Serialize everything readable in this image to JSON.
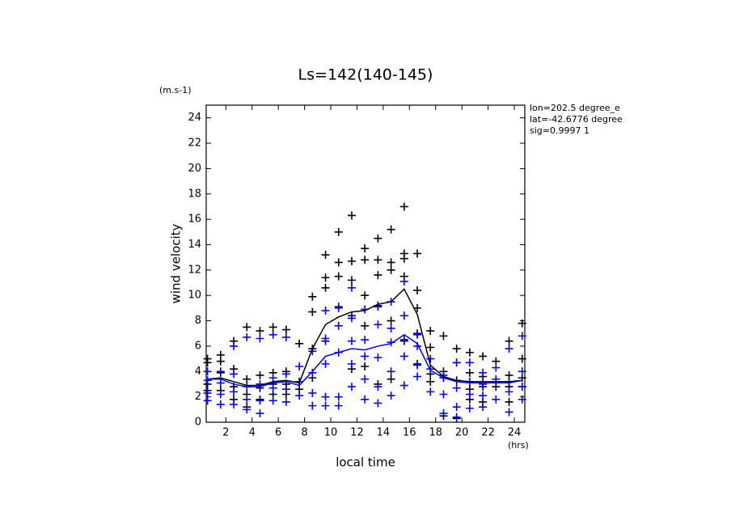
{
  "chart_data": {
    "type": "scatter",
    "title": "Ls=142(140-145)",
    "y_unit": "(m.s-1)",
    "y_label": "wind velocity",
    "x_label": "local time",
    "x_unit": "(hrs)",
    "annotations": [
      "lon=202.5 degree_e",
      "lat=-42.6776 degree",
      "sig=0.9997 1"
    ],
    "xlim": [
      0.5,
      24.8
    ],
    "ylim": [
      0,
      25
    ],
    "xticks": [
      2,
      4,
      6,
      8,
      10,
      12,
      14,
      16,
      18,
      20,
      22,
      24
    ],
    "yticks": [
      0,
      2,
      4,
      6,
      8,
      10,
      12,
      14,
      16,
      18,
      20,
      22,
      24
    ],
    "series": [
      {
        "style": "plus",
        "color": "#000000",
        "x": [
          0.6,
          0.6,
          0.6,
          0.6,
          1.6,
          1.6,
          1.6,
          1.6,
          2.6,
          2.6,
          2.6,
          2.6,
          3.6,
          3.6,
          3.6,
          3.6,
          4.6,
          4.6,
          4.6,
          4.6,
          5.6,
          5.6,
          5.6,
          5.6,
          6.6,
          6.6,
          6.6,
          6.6,
          7.6,
          7.6,
          7.6,
          8.6,
          8.6,
          8.6,
          8.6,
          9.6,
          9.6,
          9.6,
          9.6,
          10.6,
          10.6,
          10.6,
          10.6,
          11.6,
          11.6,
          11.6,
          11.6,
          11.6,
          12.6,
          12.6,
          12.6,
          12.6,
          12.6,
          13.6,
          13.6,
          13.6,
          13.6,
          13.6,
          14.6,
          14.6,
          14.6,
          14.6,
          14.6,
          15.6,
          15.6,
          15.6,
          15.6,
          15.6,
          16.6,
          16.6,
          16.6,
          16.6,
          16.6,
          17.6,
          17.6,
          17.6,
          17.6,
          18.6,
          18.6,
          18.6,
          18.6,
          19.6,
          19.6,
          19.6,
          19.6,
          20.6,
          20.6,
          20.6,
          20.6,
          21.6,
          21.6,
          21.6,
          21.6,
          22.6,
          22.6,
          22.6,
          23.6,
          23.6,
          23.6,
          23.6,
          24.6,
          24.6,
          24.6,
          24.6
        ],
        "values": [
          5,
          4.7,
          3,
          2.5,
          5.3,
          4.8,
          3.9,
          2.5,
          6.4,
          4.2,
          2.8,
          1.8,
          7.5,
          3.4,
          2.2,
          1.2,
          7.2,
          3.7,
          2.7,
          1.8,
          7.5,
          3.9,
          3,
          2.2,
          7.3,
          4,
          3,
          2.2,
          6.2,
          3.2,
          2.6,
          9.9,
          8.7,
          5.8,
          3.5,
          13.2,
          11.4,
          10.6,
          6.4,
          15,
          12.6,
          11.5,
          9.1,
          16.3,
          12.7,
          11.2,
          8.4,
          4.2,
          13.7,
          12.8,
          10,
          7.6,
          4.4,
          14.5,
          12.8,
          11.6,
          9.2,
          3,
          15.2,
          12.6,
          12,
          8,
          3.4,
          17,
          13.3,
          12.9,
          11.5,
          6.5,
          13.3,
          10.4,
          9,
          7,
          4.6,
          7.2,
          5.9,
          3.8,
          3.2,
          6.8,
          4,
          3.5,
          0.5,
          5.8,
          4.7,
          3.3,
          0.3,
          5.5,
          3.9,
          2.6,
          1.8,
          5.2,
          3.6,
          2.8,
          1.6,
          4.8,
          3.2,
          2.8,
          6.4,
          3.7,
          2.8,
          1.6,
          7.8,
          5,
          3.5,
          2.8
        ]
      },
      {
        "style": "plus",
        "color": "#0000ff",
        "x": [
          0.6,
          0.6,
          0.6,
          0.6,
          1.6,
          1.6,
          1.6,
          1.6,
          2.6,
          2.6,
          2.6,
          2.6,
          3.6,
          3.6,
          3.6,
          3.6,
          4.6,
          4.6,
          4.6,
          4.6,
          5.6,
          5.6,
          5.6,
          5.6,
          6.6,
          6.6,
          6.6,
          6.6,
          7.6,
          7.6,
          7.6,
          8.6,
          8.6,
          8.6,
          8.6,
          9.6,
          9.6,
          9.6,
          9.6,
          9.6,
          10.6,
          10.6,
          10.6,
          10.6,
          10.6,
          11.6,
          11.6,
          11.6,
          11.6,
          11.6,
          12.6,
          12.6,
          12.6,
          12.6,
          12.6,
          13.6,
          13.6,
          13.6,
          13.6,
          13.6,
          14.6,
          14.6,
          14.6,
          14.6,
          14.6,
          15.6,
          15.6,
          15.6,
          15.6,
          15.6,
          16.6,
          16.6,
          16.6,
          16.6,
          17.6,
          17.6,
          17.6,
          18.6,
          18.6,
          18.6,
          18.6,
          19.6,
          19.6,
          19.6,
          19.6,
          20.6,
          20.6,
          20.6,
          20.6,
          21.6,
          21.6,
          21.6,
          21.6,
          22.6,
          22.6,
          22.6,
          23.6,
          23.6,
          23.6,
          23.6,
          24.6,
          24.6,
          24.6,
          24.6
        ],
        "values": [
          4,
          3.3,
          2.3,
          1.7,
          4,
          3.1,
          2.2,
          1.4,
          6,
          3.8,
          2.4,
          1.4,
          6.7,
          2.8,
          1.8,
          1,
          6.6,
          3,
          1.7,
          0.7,
          6.9,
          3.5,
          2.7,
          1.7,
          6.7,
          3.8,
          2.6,
          1.6,
          4.4,
          3.2,
          2.1,
          5.6,
          3.9,
          2.3,
          1.3,
          8.8,
          6.6,
          4.6,
          2,
          1.3,
          9,
          7.6,
          5.5,
          2,
          1.3,
          10.6,
          8.2,
          6.4,
          4.6,
          2.8,
          8.9,
          6.5,
          5.2,
          3.4,
          1.8,
          9.1,
          7.7,
          5.1,
          2.8,
          1.5,
          9.5,
          7.4,
          6.3,
          4,
          2.1,
          11.1,
          8.4,
          6.4,
          5.2,
          2.9,
          6.9,
          6,
          4.5,
          3.6,
          5,
          4.2,
          2.4,
          3.7,
          3.5,
          2.2,
          0.7,
          4.7,
          2.7,
          1.2,
          0.4,
          4.7,
          3.2,
          2.2,
          1.1,
          3.9,
          3,
          2.1,
          1.2,
          4.3,
          3.4,
          1.8,
          5.8,
          3.2,
          2.4,
          0.8,
          6.8,
          4,
          2.8,
          1.8
        ]
      },
      {
        "style": "line",
        "color": "#000000",
        "x": [
          0.6,
          1.6,
          2.6,
          3.6,
          4.6,
          5.6,
          6.6,
          7.6,
          8.6,
          9.6,
          10.6,
          11.6,
          12.6,
          13.6,
          14.6,
          15.6,
          16.6,
          17.6,
          18.6,
          19.6,
          20.6,
          21.6,
          22.6,
          23.6,
          24.6
        ],
        "values": [
          3.4,
          3.5,
          3.2,
          2.9,
          2.9,
          3.2,
          3.3,
          3.1,
          5.8,
          7.7,
          8.3,
          8.7,
          8.8,
          9.3,
          9.5,
          10.5,
          8.5,
          4.5,
          3.6,
          3.3,
          3.2,
          3.2,
          3.2,
          3.2,
          3.3
        ]
      },
      {
        "style": "line",
        "color": "#0000ff",
        "x": [
          0.6,
          1.6,
          2.6,
          3.6,
          4.6,
          5.6,
          6.6,
          7.6,
          8.6,
          9.6,
          10.6,
          11.6,
          12.6,
          13.6,
          14.6,
          15.6,
          16.6,
          17.6,
          18.6,
          19.6,
          20.6,
          21.6,
          22.6,
          23.6,
          24.6
        ],
        "values": [
          3.4,
          3.4,
          3.0,
          2.8,
          2.8,
          3.1,
          3.2,
          2.9,
          4.0,
          5.2,
          5.5,
          5.8,
          5.7,
          6.0,
          6.2,
          6.9,
          6.2,
          4.1,
          3.5,
          3.2,
          3.1,
          3.1,
          3.1,
          3.1,
          3.3
        ]
      }
    ]
  }
}
